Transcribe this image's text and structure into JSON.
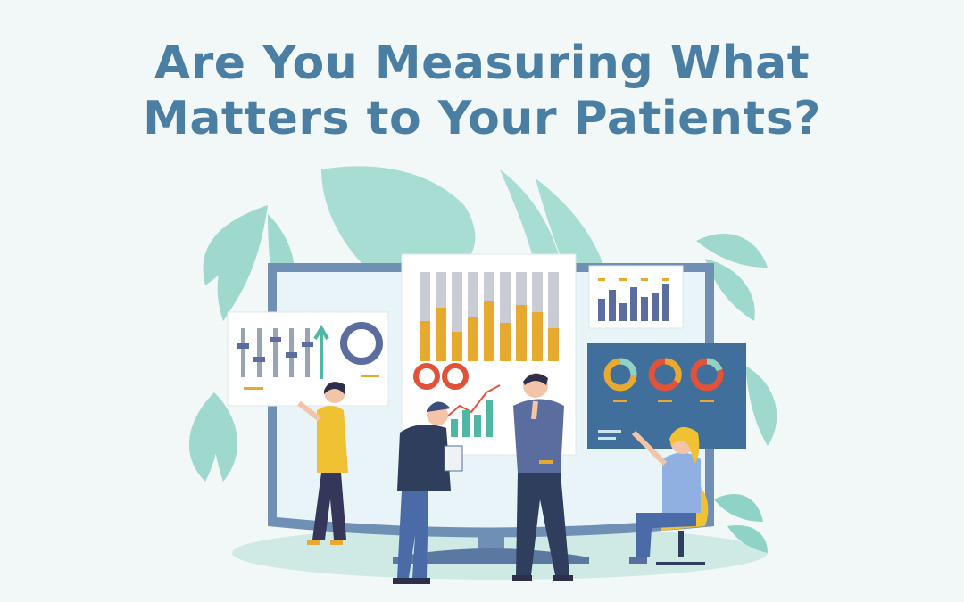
{
  "title": {
    "line1": "Are You Measuring What",
    "line2": "Matters to Your Patients?"
  },
  "colors": {
    "background": "#f1f8f7",
    "title": "#4a7fa3",
    "leaf": "#8fd3c7",
    "screen_frame": "#6f8fb5",
    "bar_gold": "#e8a930",
    "bar_slate": "#5b6c9e",
    "teal_panel": "#3f6f9a",
    "accent_red": "#e0533a"
  },
  "illustration": {
    "icons": [
      "left-palm-leaf-icon",
      "center-monstera-leaf-icon",
      "right-palm-leaf-icon",
      "monitor-icon",
      "bar-chart-panel-icon",
      "donut-chart-icon",
      "trend-line-icon",
      "chair-icon"
    ],
    "people": [
      "woman-yellow-shirt",
      "man-blue-cap",
      "man-thinking",
      "woman-sitting"
    ]
  }
}
